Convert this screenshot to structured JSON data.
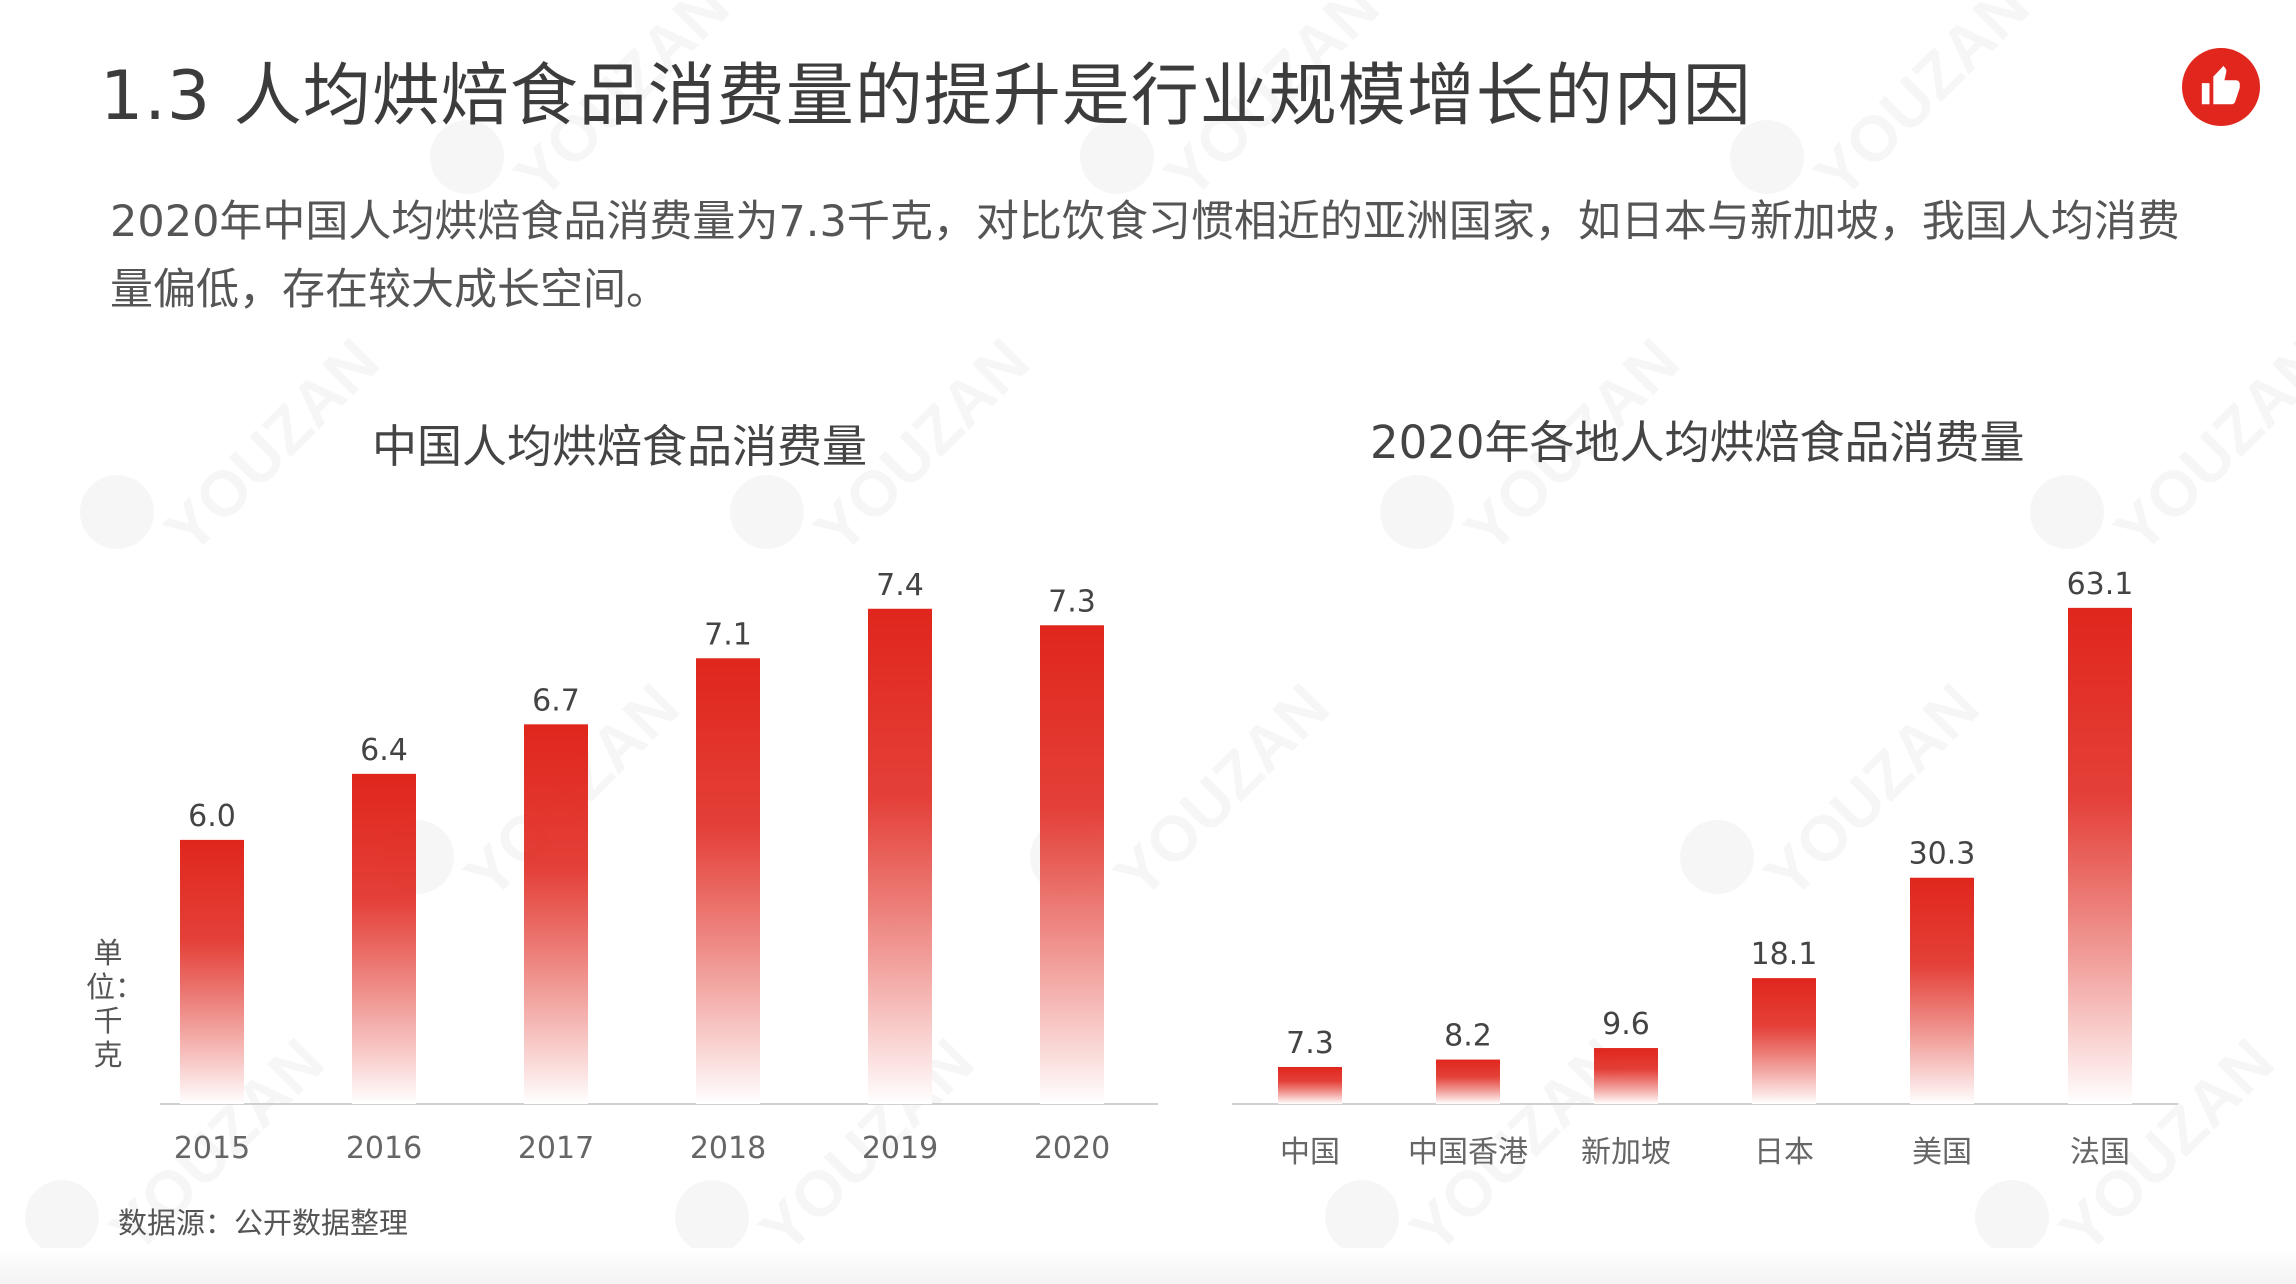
{
  "page_title": "1.3 人均烘焙食品消费量的提升是行业规模增长的内因",
  "intro_text": "2020年中国人均烘焙食品消费量为7.3千克，对比饮食习惯相近的亚洲国家，如日本与新加坡，我国人均消费量偏低，存在较大成长空间。",
  "watermark_text": "YOUZAN",
  "logo_icon": "thumbs-up-icon",
  "unit_label": "单位：千克",
  "source_note": "数据源：公开数据整理",
  "colors": {
    "bar_top": "#e0261d",
    "bar_bottom": "#ffffff",
    "axis": "#d0d0d0",
    "accent": "#e0261d"
  },
  "chart_data": [
    {
      "type": "bar",
      "title": "中国人均烘焙食品消费量",
      "categories": [
        "2015",
        "2016",
        "2017",
        "2018",
        "2019",
        "2020"
      ],
      "values": [
        6.0,
        6.4,
        6.7,
        7.1,
        7.4,
        7.3
      ],
      "value_labels": [
        "6.0",
        "6.4",
        "6.7",
        "7.1",
        "7.4",
        "7.3"
      ],
      "ylabel": "单位：千克",
      "ylim": [
        4.4,
        7.55
      ],
      "grid": false
    },
    {
      "type": "bar",
      "title": "2020年各地人均烘焙食品消费量",
      "categories": [
        "中国",
        "中国香港",
        "新加坡",
        "日本",
        "美国",
        "法国"
      ],
      "values": [
        7.3,
        8.2,
        9.6,
        18.1,
        30.3,
        63.1
      ],
      "value_labels": [
        "7.3",
        "8.2",
        "9.6",
        "18.1",
        "30.3",
        "63.1"
      ],
      "ylim": [
        2.8,
        66
      ],
      "grid": false
    }
  ]
}
